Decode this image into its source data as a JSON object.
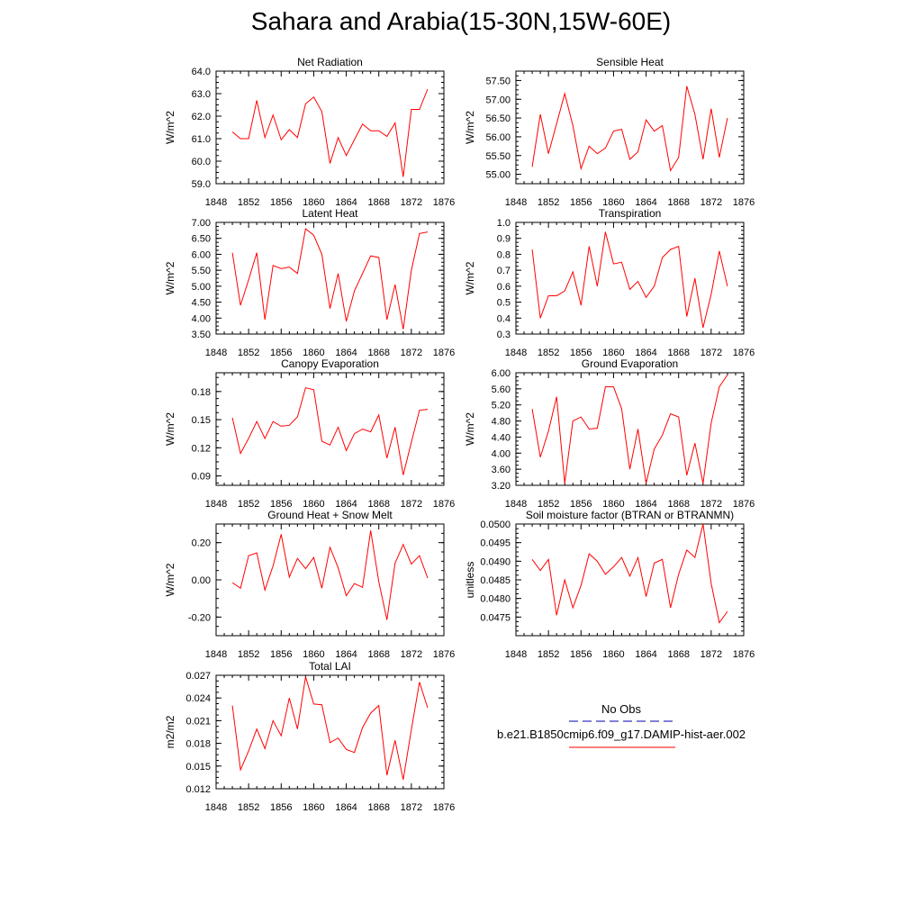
{
  "figure_title": "Sahara and Arabia(15-30N,15W-60E)",
  "colors": {
    "model_line": "#ff0000",
    "obs_line": "#0000aa",
    "axes": "#000000",
    "background": "#ffffff"
  },
  "legend": {
    "obs_label": "No Obs",
    "model_label": "b.e21.B1850cmip6.f09_g17.DAMIP-hist-aer.002"
  },
  "chart_data": [
    {
      "type": "line",
      "title": "Net Radiation",
      "ylabel": "W/m^2",
      "xlabel": "",
      "xlim": [
        1848,
        1876
      ],
      "ylim": [
        59.0,
        64.0
      ],
      "xticks": [
        "1848",
        "1852",
        "1856",
        "1860",
        "1864",
        "1868",
        "1872",
        "1876"
      ],
      "yticks": [
        "59.0",
        "60.0",
        "61.0",
        "62.0",
        "63.0",
        "64.0"
      ],
      "grid": false,
      "x": [
        1850,
        1851,
        1852,
        1853,
        1854,
        1855,
        1856,
        1857,
        1858,
        1859,
        1860,
        1861,
        1862,
        1863,
        1864,
        1865,
        1866,
        1867,
        1868,
        1869,
        1870,
        1871,
        1872,
        1873,
        1874
      ],
      "series": [
        {
          "values": [
            61.3,
            61.0,
            61.0,
            62.7,
            61.05,
            62.05,
            60.95,
            61.4,
            61.05,
            62.55,
            62.85,
            62.2,
            59.9,
            61.05,
            60.25,
            60.95,
            61.65,
            61.35,
            61.35,
            61.1,
            61.7,
            59.3,
            62.3,
            62.3,
            63.2
          ]
        }
      ]
    },
    {
      "type": "line",
      "title": "Sensible Heat",
      "ylabel": "W/m^2",
      "xlabel": "",
      "xlim": [
        1848,
        1876
      ],
      "ylim": [
        54.75,
        57.75
      ],
      "xticks": [
        "1848",
        "1852",
        "1856",
        "1860",
        "1864",
        "1868",
        "1872",
        "1876"
      ],
      "yticks": [
        "55.00",
        "55.50",
        "56.00",
        "56.50",
        "57.00",
        "57.50"
      ],
      "grid": false,
      "x": [
        1850,
        1851,
        1852,
        1853,
        1854,
        1855,
        1856,
        1857,
        1858,
        1859,
        1860,
        1861,
        1862,
        1863,
        1864,
        1865,
        1866,
        1867,
        1868,
        1869,
        1870,
        1871,
        1872,
        1873,
        1874
      ],
      "series": [
        {
          "values": [
            55.2,
            56.6,
            55.55,
            56.35,
            57.15,
            56.3,
            55.15,
            55.75,
            55.55,
            55.7,
            56.15,
            56.2,
            55.4,
            55.6,
            56.45,
            56.15,
            56.3,
            55.1,
            55.45,
            57.35,
            56.6,
            55.4,
            56.75,
            55.45,
            56.5
          ]
        }
      ]
    },
    {
      "type": "line",
      "title": "Latent Heat",
      "ylabel": "W/m^2",
      "xlabel": "",
      "xlim": [
        1848,
        1876
      ],
      "ylim": [
        3.5,
        7.0
      ],
      "xticks": [
        "1848",
        "1852",
        "1856",
        "1860",
        "1864",
        "1868",
        "1872",
        "1876"
      ],
      "yticks": [
        "3.50",
        "4.00",
        "4.50",
        "5.00",
        "5.50",
        "6.00",
        "6.50",
        "7.00"
      ],
      "grid": false,
      "x": [
        1850,
        1851,
        1852,
        1853,
        1854,
        1855,
        1856,
        1857,
        1858,
        1859,
        1860,
        1861,
        1862,
        1863,
        1864,
        1865,
        1866,
        1867,
        1868,
        1869,
        1870,
        1871,
        1872,
        1873,
        1874
      ],
      "series": [
        {
          "values": [
            6.05,
            4.4,
            5.2,
            6.05,
            3.95,
            5.65,
            5.55,
            5.6,
            5.4,
            6.8,
            6.6,
            6.0,
            4.3,
            5.4,
            3.9,
            4.85,
            5.4,
            5.95,
            5.9,
            3.95,
            5.05,
            3.65,
            5.5,
            6.65,
            6.7
          ]
        }
      ]
    },
    {
      "type": "line",
      "title": "Transpiration",
      "ylabel": "W/m^2",
      "xlabel": "",
      "xlim": [
        1848,
        1876
      ],
      "ylim": [
        0.3,
        1.0
      ],
      "xticks": [
        "1848",
        "1852",
        "1856",
        "1860",
        "1864",
        "1868",
        "1872",
        "1876"
      ],
      "yticks": [
        "0.3",
        "0.4",
        "0.5",
        "0.6",
        "0.7",
        "0.8",
        "0.9",
        "1.0"
      ],
      "grid": false,
      "x": [
        1850,
        1851,
        1852,
        1853,
        1854,
        1855,
        1856,
        1857,
        1858,
        1859,
        1860,
        1861,
        1862,
        1863,
        1864,
        1865,
        1866,
        1867,
        1868,
        1869,
        1870,
        1871,
        1872,
        1873,
        1874
      ],
      "series": [
        {
          "values": [
            0.83,
            0.4,
            0.54,
            0.54,
            0.57,
            0.69,
            0.48,
            0.85,
            0.6,
            0.94,
            0.74,
            0.75,
            0.58,
            0.63,
            0.53,
            0.6,
            0.78,
            0.83,
            0.85,
            0.41,
            0.65,
            0.34,
            0.55,
            0.82,
            0.6
          ]
        }
      ]
    },
    {
      "type": "line",
      "title": "Canopy Evaporation",
      "ylabel": "W/m^2",
      "xlabel": "",
      "xlim": [
        1848,
        1876
      ],
      "ylim": [
        0.08,
        0.2
      ],
      "xticks": [
        "1848",
        "1852",
        "1856",
        "1860",
        "1864",
        "1868",
        "1872",
        "1876"
      ],
      "yticks": [
        "0.09",
        "0.12",
        "0.15",
        "0.18"
      ],
      "grid": false,
      "x": [
        1850,
        1851,
        1852,
        1853,
        1854,
        1855,
        1856,
        1857,
        1858,
        1859,
        1860,
        1861,
        1862,
        1863,
        1864,
        1865,
        1866,
        1867,
        1868,
        1869,
        1870,
        1871,
        1872,
        1873,
        1874
      ],
      "series": [
        {
          "values": [
            0.152,
            0.114,
            0.13,
            0.148,
            0.13,
            0.148,
            0.143,
            0.144,
            0.153,
            0.184,
            0.182,
            0.127,
            0.123,
            0.142,
            0.117,
            0.135,
            0.14,
            0.137,
            0.155,
            0.109,
            0.142,
            0.091,
            0.126,
            0.16,
            0.161
          ]
        }
      ]
    },
    {
      "type": "line",
      "title": "Ground Evaporation",
      "ylabel": "W/m^2",
      "xlabel": "",
      "xlim": [
        1848,
        1876
      ],
      "ylim": [
        3.2,
        6.0
      ],
      "xticks": [
        "1848",
        "1852",
        "1856",
        "1860",
        "1864",
        "1868",
        "1872",
        "1876"
      ],
      "yticks": [
        "3.20",
        "3.60",
        "4.00",
        "4.40",
        "4.80",
        "5.20",
        "5.60",
        "6.00"
      ],
      "grid": false,
      "x": [
        1850,
        1851,
        1852,
        1853,
        1854,
        1855,
        1856,
        1857,
        1858,
        1859,
        1860,
        1861,
        1862,
        1863,
        1864,
        1865,
        1866,
        1867,
        1868,
        1869,
        1870,
        1871,
        1872,
        1873,
        1874
      ],
      "series": [
        {
          "values": [
            5.1,
            3.9,
            4.55,
            5.4,
            3.25,
            4.8,
            4.9,
            4.6,
            4.62,
            5.65,
            5.65,
            5.1,
            3.6,
            4.6,
            3.25,
            4.1,
            4.45,
            4.98,
            4.9,
            3.45,
            4.25,
            3.25,
            4.75,
            5.65,
            5.95
          ]
        }
      ]
    },
    {
      "type": "line",
      "title": "Ground Heat + Snow Melt",
      "ylabel": "W/m^2",
      "xlabel": "",
      "xlim": [
        1848,
        1876
      ],
      "ylim": [
        -0.3,
        0.3
      ],
      "xticks": [
        "1848",
        "1852",
        "1856",
        "1860",
        "1864",
        "1868",
        "1872",
        "1876"
      ],
      "yticks": [
        "-0.20",
        "0.00",
        "0.20"
      ],
      "grid": false,
      "x": [
        1850,
        1851,
        1852,
        1853,
        1854,
        1855,
        1856,
        1857,
        1858,
        1859,
        1860,
        1861,
        1862,
        1863,
        1864,
        1865,
        1866,
        1867,
        1868,
        1869,
        1870,
        1871,
        1872,
        1873,
        1874
      ],
      "series": [
        {
          "values": [
            -0.015,
            -0.045,
            0.13,
            0.145,
            -0.055,
            0.075,
            0.245,
            0.015,
            0.115,
            0.06,
            0.12,
            -0.045,
            0.175,
            0.065,
            -0.085,
            -0.02,
            -0.04,
            0.265,
            -0.01,
            -0.215,
            0.09,
            0.19,
            0.085,
            0.13,
            0.01
          ]
        }
      ]
    },
    {
      "type": "line",
      "title": "Soil moisture factor (BTRAN or BTRANMN)",
      "ylabel": "unitless",
      "xlabel": "",
      "xlim": [
        1848,
        1876
      ],
      "ylim": [
        0.047,
        0.05
      ],
      "xticks": [
        "1848",
        "1852",
        "1856",
        "1860",
        "1864",
        "1868",
        "1872",
        "1876"
      ],
      "yticks": [
        "0.0475",
        "0.0480",
        "0.0485",
        "0.0490",
        "0.0495",
        "0.0500"
      ],
      "grid": false,
      "x": [
        1850,
        1851,
        1852,
        1853,
        1854,
        1855,
        1856,
        1857,
        1858,
        1859,
        1860,
        1861,
        1862,
        1863,
        1864,
        1865,
        1866,
        1867,
        1868,
        1869,
        1870,
        1871,
        1872,
        1873,
        1874
      ],
      "series": [
        {
          "values": [
            0.04905,
            0.04875,
            0.04905,
            0.04755,
            0.0485,
            0.04775,
            0.04835,
            0.0492,
            0.049,
            0.04865,
            0.04885,
            0.0491,
            0.0486,
            0.0491,
            0.04805,
            0.04895,
            0.04905,
            0.04775,
            0.04865,
            0.0493,
            0.0491,
            0.05,
            0.0484,
            0.04735,
            0.04765
          ]
        }
      ]
    },
    {
      "type": "line",
      "title": "Total LAI",
      "ylabel": "m2/m2",
      "xlabel": "",
      "xlim": [
        1848,
        1876
      ],
      "ylim": [
        0.012,
        0.027
      ],
      "xticks": [
        "1848",
        "1852",
        "1856",
        "1860",
        "1864",
        "1868",
        "1872",
        "1876"
      ],
      "yticks": [
        "0.012",
        "0.015",
        "0.018",
        "0.021",
        "0.024",
        "0.027"
      ],
      "grid": false,
      "x": [
        1850,
        1851,
        1852,
        1853,
        1854,
        1855,
        1856,
        1857,
        1858,
        1859,
        1860,
        1861,
        1862,
        1863,
        1864,
        1865,
        1866,
        1867,
        1868,
        1869,
        1870,
        1871,
        1872,
        1873,
        1874
      ],
      "series": [
        {
          "values": [
            0.023,
            0.0145,
            0.017,
            0.0199,
            0.0173,
            0.021,
            0.019,
            0.024,
            0.0199,
            0.0268,
            0.0232,
            0.0231,
            0.0181,
            0.0187,
            0.0172,
            0.0168,
            0.0201,
            0.022,
            0.023,
            0.0138,
            0.0184,
            0.0132,
            0.0198,
            0.0261,
            0.0227
          ]
        }
      ]
    }
  ]
}
